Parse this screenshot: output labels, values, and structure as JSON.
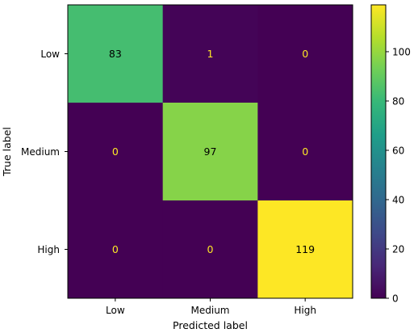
{
  "chart_data": {
    "type": "heatmap",
    "title": "",
    "xlabel": "Predicted label",
    "ylabel": "True label",
    "x_categories": [
      "Low",
      "Medium",
      "High"
    ],
    "y_categories": [
      "Low",
      "Medium",
      "High"
    ],
    "values": [
      [
        83,
        1,
        0
      ],
      [
        0,
        97,
        0
      ],
      [
        0,
        0,
        119
      ]
    ],
    "colormap": "viridis",
    "color_range": [
      0,
      119
    ],
    "colorbar_ticks": [
      0,
      20,
      40,
      60,
      80,
      100
    ],
    "text_colors": {
      "on_dark": "#fde725",
      "on_light": "#000000"
    },
    "grid": false
  }
}
